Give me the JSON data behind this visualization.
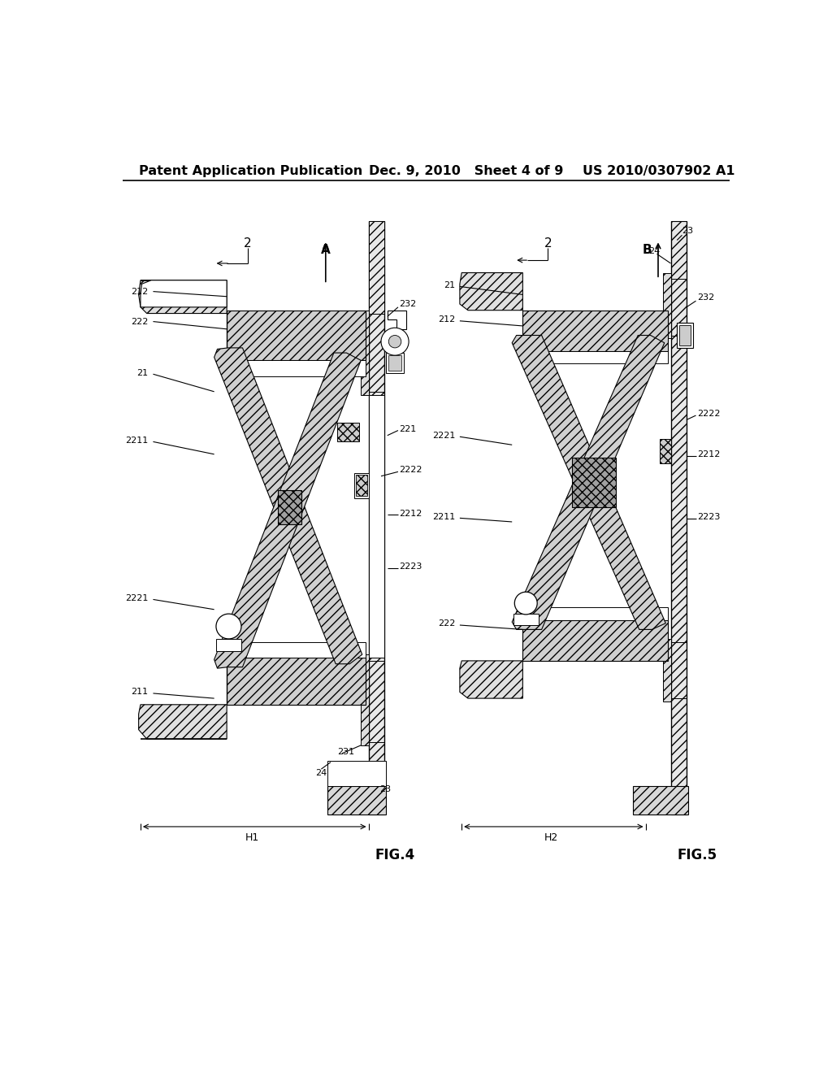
{
  "background_color": "#ffffff",
  "header_text_left": "Patent Application Publication",
  "header_text_mid": "Dec. 9, 2010   Sheet 4 of 9",
  "header_text_right": "US 2010/0307902 A1",
  "header_font_size": 11.5
}
